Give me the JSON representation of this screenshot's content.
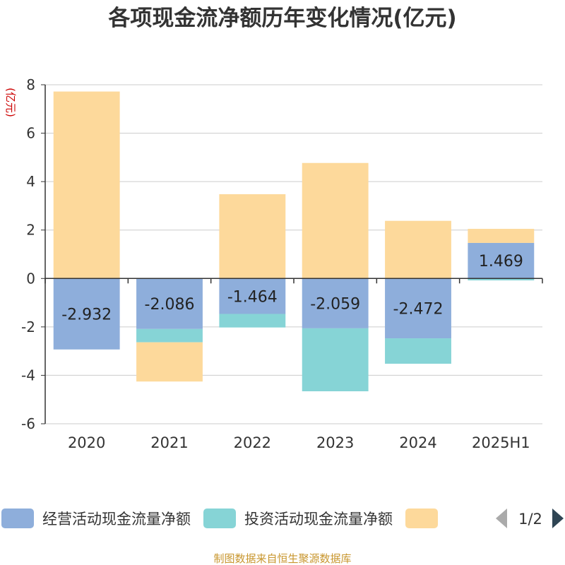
{
  "chart_data": {
    "type": "bar",
    "stacked": true,
    "title": "各项现金流净额历年变化情况(亿元)",
    "unit_label": "(亿元)",
    "categories": [
      "2020",
      "2021",
      "2022",
      "2023",
      "2024",
      "2025H1"
    ],
    "ylim": [
      -6,
      8
    ],
    "yticks": [
      8,
      6,
      4,
      2,
      0,
      -2,
      -4,
      -6
    ],
    "grid": true,
    "legend_position": "bottom",
    "series": [
      {
        "name": "经营活动现金流量净额",
        "color": "#8eaedb",
        "values": [
          -2.932,
          -2.086,
          -1.464,
          -2.059,
          -2.472,
          1.469
        ],
        "labels": [
          "-2.932",
          "-2.086",
          "-1.464",
          "-2.059",
          "-2.472",
          "1.469"
        ]
      },
      {
        "name": "投资活动现金流量净额",
        "color": "#86d4d6",
        "values": [
          0.0,
          -0.55,
          -0.56,
          -2.6,
          -1.05,
          -0.08
        ]
      },
      {
        "name": "",
        "color": "#fdd99b",
        "values": [
          7.72,
          -1.62,
          3.48,
          4.77,
          2.38,
          0.58
        ]
      }
    ]
  },
  "legend": {
    "page_indicator": "1/2"
  },
  "source": "制图数据来自恒生聚源数据库"
}
